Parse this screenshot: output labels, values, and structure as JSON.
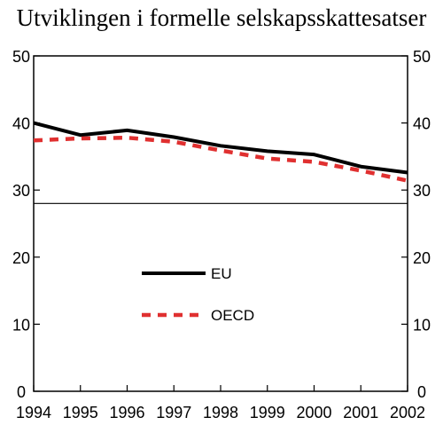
{
  "chart_data": {
    "type": "line",
    "title": "Utviklingen i formelle selskapsskattesatser",
    "x": [
      "1994",
      "1995",
      "1996",
      "1997",
      "1998",
      "1999",
      "2000",
      "2001",
      "2002"
    ],
    "series": [
      {
        "name": "EU",
        "values": [
          40.0,
          38.2,
          38.9,
          37.9,
          36.6,
          35.8,
          35.3,
          33.5,
          32.6
        ],
        "color": "#000000",
        "style": "solid"
      },
      {
        "name": "OECD",
        "values": [
          37.4,
          37.7,
          37.8,
          37.2,
          35.9,
          34.7,
          34.2,
          32.9,
          31.4
        ],
        "color": "#e03030",
        "style": "dashed"
      }
    ],
    "ylim": [
      0,
      50
    ],
    "yticks": [
      "0",
      "10",
      "20",
      "30",
      "40",
      "50"
    ],
    "reference_line": 28,
    "secondary_y_axis": true,
    "legend_position": "center-left",
    "grid": false
  }
}
